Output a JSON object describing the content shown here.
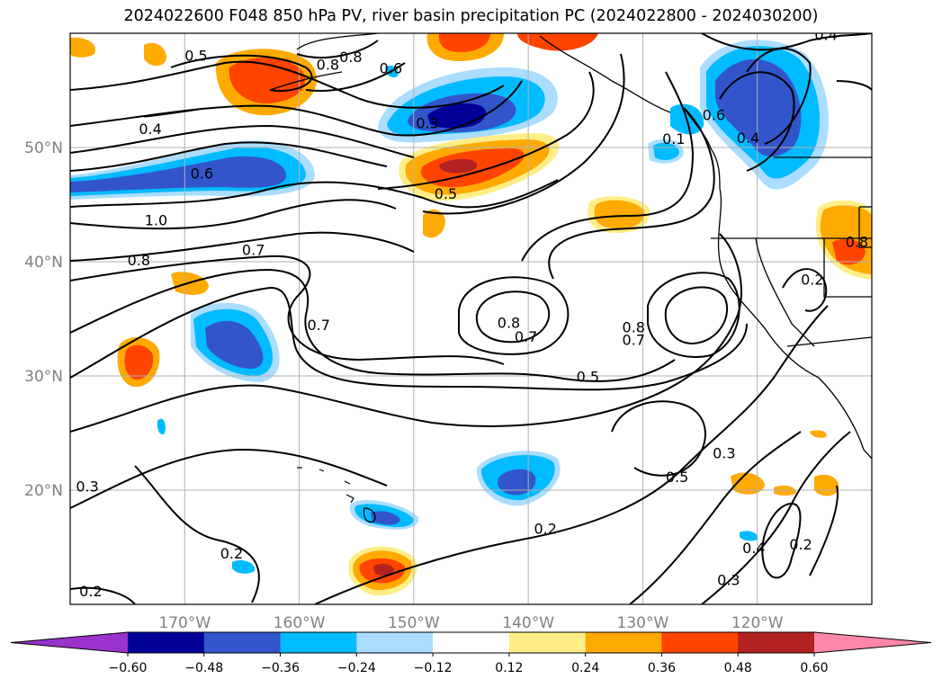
{
  "title": "2024022600 F048 850 hPa PV, river basin precipitation PC (2024022800 - 2024030200)",
  "map": {
    "lon_range": [
      -180,
      -110
    ],
    "lat_range": [
      10,
      60
    ],
    "lon_ticks": [
      {
        "lon": -170,
        "label": "170°W"
      },
      {
        "lon": -160,
        "label": "160°W"
      },
      {
        "lon": -150,
        "label": "150°W"
      },
      {
        "lon": -140,
        "label": "140°W"
      },
      {
        "lon": -130,
        "label": "130°W"
      },
      {
        "lon": -120,
        "label": "120°W"
      }
    ],
    "lat_ticks": [
      {
        "lat": 20,
        "label": "20°N"
      },
      {
        "lat": 30,
        "label": "30°N"
      },
      {
        "lat": 40,
        "label": "40°N"
      },
      {
        "lat": 50,
        "label": "50°N"
      }
    ],
    "contour_labels": [
      {
        "lon": -169.0,
        "lat": 57.6,
        "text": "0.5"
      },
      {
        "lon": -157.5,
        "lat": 56.8,
        "text": "0.8"
      },
      {
        "lon": -155.5,
        "lat": 57.5,
        "text": "0.8"
      },
      {
        "lon": -152.0,
        "lat": 56.5,
        "text": "0.6"
      },
      {
        "lon": -173.0,
        "lat": 51.2,
        "text": "0.4"
      },
      {
        "lon": -168.5,
        "lat": 47.3,
        "text": "0.6"
      },
      {
        "lon": -172.5,
        "lat": 43.2,
        "text": "1.0"
      },
      {
        "lon": -174.0,
        "lat": 39.7,
        "text": "0.8"
      },
      {
        "lon": -164.0,
        "lat": 40.6,
        "text": "0.7"
      },
      {
        "lon": -148.8,
        "lat": 51.7,
        "text": "0.3"
      },
      {
        "lon": -147.2,
        "lat": 45.5,
        "text": "0.5"
      },
      {
        "lon": -158.3,
        "lat": 34.0,
        "text": "0.7"
      },
      {
        "lon": -141.7,
        "lat": 34.2,
        "text": "0.8"
      },
      {
        "lon": -140.2,
        "lat": 33.0,
        "text": "0.7"
      },
      {
        "lon": -130.8,
        "lat": 33.8,
        "text": "0.8"
      },
      {
        "lon": -130.8,
        "lat": 32.7,
        "text": "0.7"
      },
      {
        "lon": -134.8,
        "lat": 29.5,
        "text": "0.5"
      },
      {
        "lon": -127.0,
        "lat": 20.7,
        "text": "0.5"
      },
      {
        "lon": -122.9,
        "lat": 22.8,
        "text": "0.3"
      },
      {
        "lon": -178.5,
        "lat": 19.9,
        "text": "0.3"
      },
      {
        "lon": -165.9,
        "lat": 14.0,
        "text": "0.2"
      },
      {
        "lon": -178.2,
        "lat": 10.7,
        "text": "0.2"
      },
      {
        "lon": -138.5,
        "lat": 16.2,
        "text": "0.2"
      },
      {
        "lon": -120.3,
        "lat": 14.5,
        "text": "0.4"
      },
      {
        "lon": -116.2,
        "lat": 14.8,
        "text": "0.2"
      },
      {
        "lon": -122.5,
        "lat": 11.7,
        "text": "0.3"
      },
      {
        "lon": -115.2,
        "lat": 38.0,
        "text": "0.2"
      },
      {
        "lon": -114.0,
        "lat": 59.4,
        "text": "0.4"
      },
      {
        "lon": -123.8,
        "lat": 52.4,
        "text": "0.6"
      },
      {
        "lon": -120.8,
        "lat": 50.4,
        "text": "0.4"
      },
      {
        "lon": -111.3,
        "lat": 41.3,
        "text": "0.8"
      },
      {
        "lon": -127.3,
        "lat": 50.3,
        "text": "0.1"
      }
    ]
  },
  "colorbar": {
    "colors": [
      "#9933cc",
      "#000099",
      "#3355cc",
      "#00bbff",
      "#aaddff",
      "#ffffff",
      "#ffee88",
      "#ffaa00",
      "#ff4400",
      "#b22222",
      "#ff88aa"
    ],
    "tick_labels": [
      "−0.60",
      "−0.48",
      "−0.36",
      "−0.24",
      "−0.12",
      "0.12",
      "0.24",
      "0.36",
      "0.48",
      "0.60"
    ],
    "extend": "both"
  },
  "colors": {
    "ocean": "#ffffff",
    "grid": "#b0b0b0",
    "contour": "#000000",
    "axis_label": "#808080"
  }
}
